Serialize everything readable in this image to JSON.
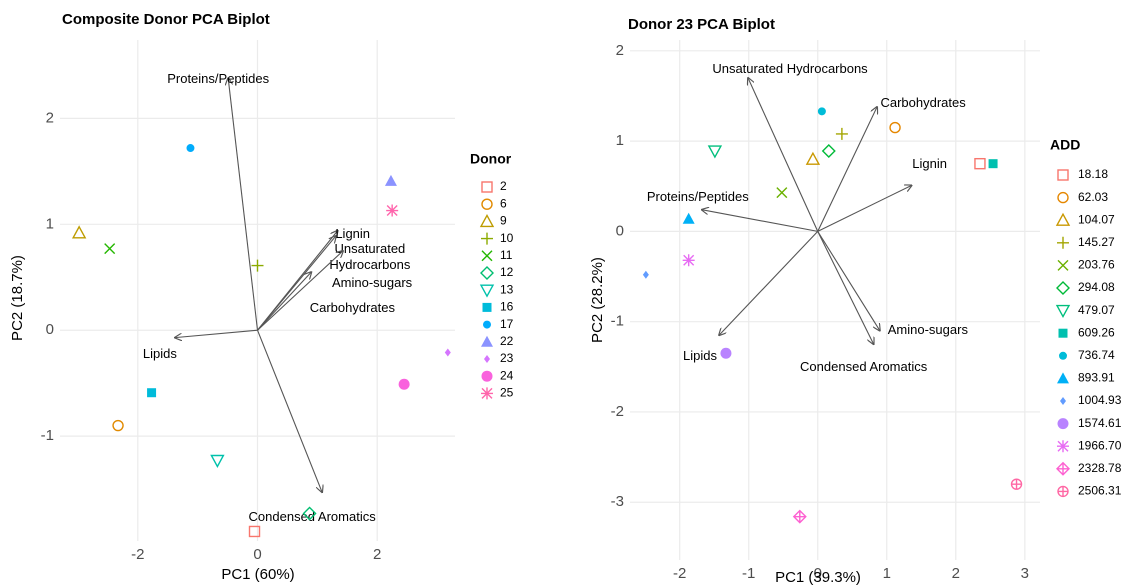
{
  "chart_data": [
    {
      "type": "biplot",
      "title": "Composite Donor PCA Biplot",
      "x_label": "PC1 (60%)",
      "y_label": "PC2 (18.7%)",
      "legend_title": "Donor",
      "xlim": [
        -3.3,
        3.3
      ],
      "ylim": [
        -1.99,
        2.74
      ],
      "xticks": [
        -2,
        0,
        2
      ],
      "yticks": [
        -1,
        0,
        1,
        2
      ],
      "grid": true,
      "arrow_color": "#555555",
      "series": [
        {
          "name": "2",
          "color": "#F8766D",
          "marker": "square-open",
          "x": [
            -0.05
          ],
          "values": [
            -1.9
          ]
        },
        {
          "name": "6",
          "color": "#E18A00",
          "marker": "circle-open",
          "x": [
            -2.33
          ],
          "values": [
            -0.9
          ]
        },
        {
          "name": "9",
          "color": "#BE9C00",
          "marker": "triangle-open",
          "x": [
            -2.98
          ],
          "values": [
            0.92
          ]
        },
        {
          "name": "10",
          "color": "#8CAB00",
          "marker": "plus",
          "x": [
            0.0
          ],
          "values": [
            0.61
          ]
        },
        {
          "name": "11",
          "color": "#24B700",
          "marker": "cross",
          "x": [
            -2.47
          ],
          "values": [
            0.77
          ]
        },
        {
          "name": "12",
          "color": "#00BE70",
          "marker": "diamond-open",
          "x": [
            0.87
          ],
          "values": [
            -1.73
          ]
        },
        {
          "name": "13",
          "color": "#00C1AB",
          "marker": "triangle-down-open",
          "x": [
            -0.67
          ],
          "values": [
            -1.23
          ]
        },
        {
          "name": "16",
          "color": "#00BBDA",
          "marker": "square",
          "x": [
            -1.77
          ],
          "values": [
            -0.59
          ]
        },
        {
          "name": "17",
          "color": "#00ACFC",
          "marker": "circle",
          "x": [
            -1.12
          ],
          "values": [
            1.72
          ]
        },
        {
          "name": "22",
          "color": "#8B93FF",
          "marker": "triangle",
          "x": [
            2.23
          ],
          "values": [
            1.41
          ]
        },
        {
          "name": "23",
          "color": "#D575FE",
          "marker": "diamond-small",
          "x": [
            3.18
          ],
          "values": [
            -0.21
          ]
        },
        {
          "name": "24",
          "color": "#F962DD",
          "marker": "circle-large",
          "x": [
            2.45
          ],
          "values": [
            -0.51
          ]
        },
        {
          "name": "25",
          "color": "#FF65AC",
          "marker": "asterisk",
          "x": [
            2.25
          ],
          "values": [
            1.13
          ]
        }
      ],
      "loadings": [
        {
          "name": "Proteins/Peptides",
          "x": -0.49,
          "y": 2.38
        },
        {
          "name": "Lignin",
          "x": 1.34,
          "y": 0.94
        },
        {
          "name": "Unsaturated Hydrocarbons",
          "x": 1.31,
          "y": 0.89
        },
        {
          "name": "Amino-sugars",
          "x": 1.43,
          "y": 0.75
        },
        {
          "name": "Carbohydrates",
          "x": 0.9,
          "y": 0.55
        },
        {
          "name": "Lipids",
          "x": -1.38,
          "y": -0.07
        },
        {
          "name": "Condensed Aromatics",
          "x": 1.08,
          "y": -1.53
        }
      ]
    },
    {
      "type": "biplot",
      "title": "Donor 23 PCA Biplot",
      "x_label": "PC1 (39.3%)",
      "y_label": "PC2 (28.2%)",
      "legend_title": "ADD",
      "xlim": [
        -2.72,
        3.22
      ],
      "ylim": [
        -3.64,
        2.12
      ],
      "xticks": [
        -2,
        -1,
        0,
        1,
        2,
        3
      ],
      "yticks": [
        -3,
        -2,
        -1,
        0,
        1,
        2
      ],
      "grid": true,
      "arrow_color": "#555555",
      "series": [
        {
          "name": "18.18",
          "color": "#F8766D",
          "marker": "square-open",
          "x": [
            2.35
          ],
          "values": [
            0.75
          ]
        },
        {
          "name": "62.03",
          "color": "#E58700",
          "marker": "circle-open",
          "x": [
            1.12
          ],
          "values": [
            1.15
          ]
        },
        {
          "name": "104.07",
          "color": "#C99800",
          "marker": "triangle-open",
          "x": [
            -0.07
          ],
          "values": [
            0.8
          ]
        },
        {
          "name": "145.27",
          "color": "#A3A500",
          "marker": "plus",
          "x": [
            0.35
          ],
          "values": [
            1.08
          ]
        },
        {
          "name": "203.76",
          "color": "#6BB100",
          "marker": "cross",
          "x": [
            -0.52
          ],
          "values": [
            0.43
          ]
        },
        {
          "name": "294.08",
          "color": "#00BA38",
          "marker": "diamond-open",
          "x": [
            0.16
          ],
          "values": [
            0.89
          ]
        },
        {
          "name": "479.07",
          "color": "#00BF7D",
          "marker": "triangle-down-open",
          "x": [
            -1.49
          ],
          "values": [
            0.89
          ]
        },
        {
          "name": "609.26",
          "color": "#00C0AF",
          "marker": "square",
          "x": [
            2.54
          ],
          "values": [
            0.75
          ]
        },
        {
          "name": "736.74",
          "color": "#00BCD8",
          "marker": "circle",
          "x": [
            0.06
          ],
          "values": [
            1.33
          ]
        },
        {
          "name": "893.91",
          "color": "#00B0F6",
          "marker": "triangle",
          "x": [
            -1.87
          ],
          "values": [
            0.14
          ]
        },
        {
          "name": "1004.93",
          "color": "#619CFF",
          "marker": "diamond-small",
          "x": [
            -2.49
          ],
          "values": [
            -0.48
          ]
        },
        {
          "name": "1574.61",
          "color": "#B983FF",
          "marker": "circle-large",
          "x": [
            -1.33
          ],
          "values": [
            -1.35
          ]
        },
        {
          "name": "1966.70",
          "color": "#E76BF3",
          "marker": "asterisk",
          "x": [
            -1.87
          ],
          "values": [
            -0.32
          ]
        },
        {
          "name": "2328.78",
          "color": "#FD61D1",
          "marker": "diamond-plus",
          "x": [
            -0.26
          ],
          "values": [
            -3.16
          ]
        },
        {
          "name": "2506.31",
          "color": "#FF67A4",
          "marker": "circle-plus",
          "x": [
            2.88
          ],
          "values": [
            -2.8
          ]
        }
      ],
      "loadings": [
        {
          "name": "Unsaturated Hydrocarbons",
          "x": -1.01,
          "y": 1.7
        },
        {
          "name": "Carbohydrates",
          "x": 0.86,
          "y": 1.38
        },
        {
          "name": "Lignin",
          "x": 1.36,
          "y": 0.51
        },
        {
          "name": "Proteins/Peptides",
          "x": -1.68,
          "y": 0.24
        },
        {
          "name": "Amino-sugars",
          "x": 0.9,
          "y": -1.1
        },
        {
          "name": "Condensed Aromatics",
          "x": 0.81,
          "y": -1.25
        },
        {
          "name": "Lipids",
          "x": -1.43,
          "y": -1.15
        }
      ]
    }
  ]
}
